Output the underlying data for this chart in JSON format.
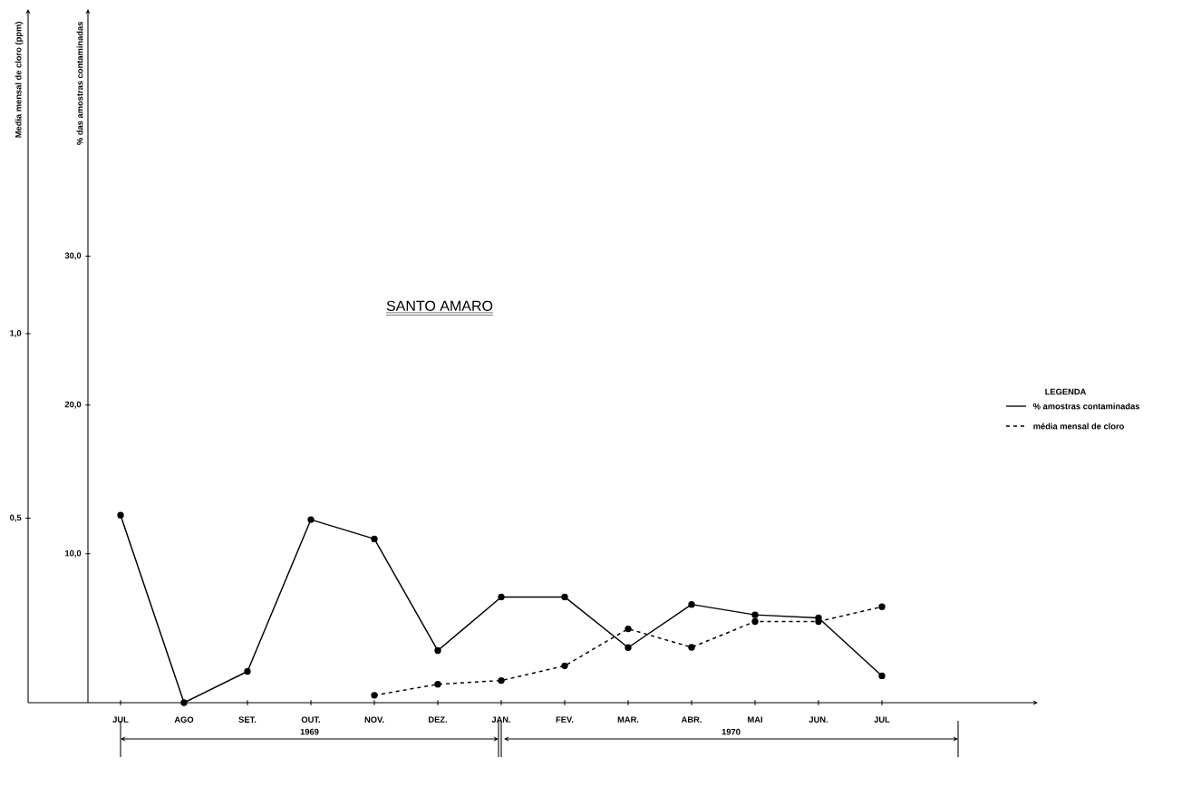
{
  "chart_data": {
    "type": "line",
    "title": "SANTO AMARO",
    "ylabel": "Media mensal de cloro (ppm)",
    "y2label": "% das amostras contaminadas",
    "legend_title": "LEGENDA",
    "categories": [
      "JUL",
      "AGO",
      "SET.",
      "OUT.",
      "NOV.",
      "DEZ.",
      "JAN.",
      "FEV.",
      "MAR.",
      "ABR.",
      "MAI",
      "JUN.",
      "JUL"
    ],
    "series": [
      {
        "name": "% amostras contaminadas",
        "color": "#000000",
        "axis": "y2",
        "line_style": "solid",
        "values": [
          12.6,
          0,
          2.1,
          12.3,
          11.0,
          3.5,
          7.1,
          7.1,
          3.7,
          6.6,
          5.9,
          5.7,
          1.8
        ]
      },
      {
        "name": "média mensal de cloro",
        "color": "#000000",
        "line_style": "dashed",
        "values": [
          null,
          null,
          null,
          null,
          0.02,
          0.05,
          0.06,
          0.1,
          0.2,
          0.15,
          0.22,
          0.22,
          0.26
        ]
      }
    ],
    "ylim": [
      0,
      1.88
    ],
    "yticks": [
      {
        "value": 0.5,
        "label": "0,5"
      },
      {
        "value": 1,
        "label": "1,0"
      }
    ],
    "y2lim": [
      0,
      46.6
    ],
    "y2ticks": [
      {
        "value": 10,
        "label": "10,0"
      },
      {
        "value": 20,
        "label": "20,0"
      },
      {
        "value": 30,
        "label": "30,0"
      }
    ],
    "marker": "circle",
    "legend": "right",
    "annotations": [
      "1969",
      "1970"
    ]
  }
}
